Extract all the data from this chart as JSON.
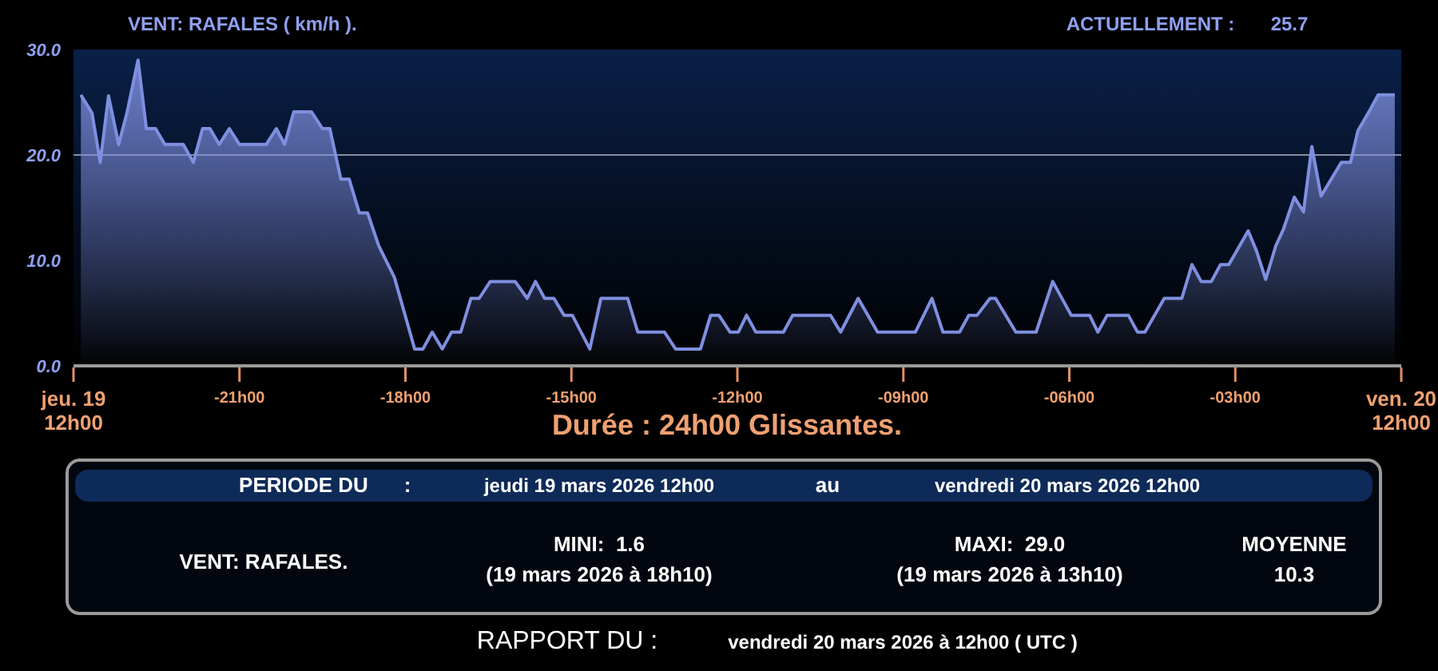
{
  "chart_data": {
    "type": "area",
    "title": "VENT: RAFALES ( km/h ).",
    "subtitle": "Durée : 24h00 Glissantes.",
    "annotations": [
      "ACTUELLEMENT :",
      "25.7",
      "PERIODE DU",
      ":",
      "jeudi 19 mars 2026 12h00",
      "au",
      "vendredi 20 mars 2026 12h00",
      "VENT: RAFALES.",
      "MINI:  1.6",
      "(19 mars 2026 à 18h10)",
      "MAXI:  29.0",
      "(19 mars 2026 à 13h10)",
      "MOYENNE",
      "10.3",
      "RAPPORT DU :",
      "vendredi 20 mars 2026 à 12h00 ( UTC )"
    ],
    "xlim": [
      "2026-03-19T12:00",
      "2026-03-20T12:00"
    ],
    "xticks": [
      {
        "value": "2026-03-19T12:00",
        "label": "jeu. 19\n12h00"
      },
      {
        "value": "2026-03-19T15:00",
        "label": "-21h00"
      },
      {
        "value": "2026-03-19T18:00",
        "label": "-18h00"
      },
      {
        "value": "2026-03-19T21:00",
        "label": "-15h00"
      },
      {
        "value": "2026-03-20T00:00",
        "label": "-12h00"
      },
      {
        "value": "2026-03-20T03:00",
        "label": "-09h00"
      },
      {
        "value": "2026-03-20T06:00",
        "label": "-06h00"
      },
      {
        "value": "2026-03-20T09:00",
        "label": "-03h00"
      },
      {
        "value": "2026-03-20T12:00",
        "label": "ven. 20\n12h00"
      }
    ],
    "ylim": [
      0,
      30
    ],
    "yticks": [
      {
        "value": 0,
        "label": "0.0"
      },
      {
        "value": 10,
        "label": "10.0"
      },
      {
        "value": 20,
        "label": "20.0"
      },
      {
        "value": 30,
        "label": "30.0"
      }
    ],
    "grid": false,
    "ref_lines": [
      {
        "axis": "y",
        "value": 20,
        "color": "#8890a0"
      }
    ],
    "series": [
      {
        "color": "#7f8fe0",
        "x": [
          "2026-03-19T12:08",
          "2026-03-19T12:20",
          "2026-03-19T12:29",
          "2026-03-19T12:38",
          "2026-03-19T12:49",
          "2026-03-19T12:58",
          "2026-03-19T13:10",
          "2026-03-19T13:19",
          "2026-03-19T13:29",
          "2026-03-19T13:39",
          "2026-03-19T13:59",
          "2026-03-19T14:10",
          "2026-03-19T14:20",
          "2026-03-19T14:28",
          "2026-03-19T14:38",
          "2026-03-19T14:49",
          "2026-03-19T15:00",
          "2026-03-19T15:29",
          "2026-03-19T15:40",
          "2026-03-19T15:49",
          "2026-03-19T15:59",
          "2026-03-19T16:18",
          "2026-03-19T16:30",
          "2026-03-19T16:38",
          "2026-03-19T16:50",
          "2026-03-19T16:59",
          "2026-03-19T17:10",
          "2026-03-19T17:19",
          "2026-03-19T17:31",
          "2026-03-19T17:48",
          "2026-03-19T18:10",
          "2026-03-19T18:19",
          "2026-03-19T18:29",
          "2026-03-19T18:40",
          "2026-03-19T18:50",
          "2026-03-19T19:00",
          "2026-03-19T19:11",
          "2026-03-19T19:20",
          "2026-03-19T19:32",
          "2026-03-19T19:59",
          "2026-03-19T20:12",
          "2026-03-19T20:21",
          "2026-03-19T20:31",
          "2026-03-19T20:41",
          "2026-03-19T20:52",
          "2026-03-19T21:01",
          "2026-03-19T21:20",
          "2026-03-19T21:32",
          "2026-03-19T22:01",
          "2026-03-19T22:12",
          "2026-03-19T22:41",
          "2026-03-19T22:53",
          "2026-03-19T23:20",
          "2026-03-19T23:31",
          "2026-03-19T23:40",
          "2026-03-19T23:52",
          "2026-03-20T00:01",
          "2026-03-20T00:10",
          "2026-03-20T00:20",
          "2026-03-20T00:50",
          "2026-03-20T01:00",
          "2026-03-20T01:41",
          "2026-03-20T01:52",
          "2026-03-20T02:11",
          "2026-03-20T02:32",
          "2026-03-20T03:13",
          "2026-03-20T03:31",
          "2026-03-20T03:43",
          "2026-03-20T04:01",
          "2026-03-20T04:11",
          "2026-03-20T04:20",
          "2026-03-20T04:34",
          "2026-03-20T04:40",
          "2026-03-20T05:02",
          "2026-03-20T05:24",
          "2026-03-20T05:42",
          "2026-03-20T06:02",
          "2026-03-20T06:22",
          "2026-03-20T06:31",
          "2026-03-20T06:41",
          "2026-03-20T07:04",
          "2026-03-20T07:14",
          "2026-03-20T07:22",
          "2026-03-20T07:43",
          "2026-03-20T08:02",
          "2026-03-20T08:13",
          "2026-03-20T08:23",
          "2026-03-20T08:34",
          "2026-03-20T08:44",
          "2026-03-20T08:53",
          "2026-03-20T09:14",
          "2026-03-20T09:23",
          "2026-03-20T09:33",
          "2026-03-20T09:44",
          "2026-03-20T09:52",
          "2026-03-20T10:04",
          "2026-03-20T10:14",
          "2026-03-20T10:23",
          "2026-03-20T10:33",
          "2026-03-20T10:55",
          "2026-03-20T11:05",
          "2026-03-20T11:13",
          "2026-03-20T11:25",
          "2026-03-20T11:35",
          "2026-03-20T11:53"
        ],
        "values": [
          25.7,
          24.0,
          19.3,
          25.6,
          21.0,
          24.0,
          29.0,
          22.5,
          22.5,
          21.0,
          21.0,
          19.3,
          22.5,
          22.5,
          21.0,
          22.5,
          21.0,
          21.0,
          22.5,
          21.0,
          24.1,
          24.1,
          22.5,
          22.5,
          17.7,
          17.7,
          14.5,
          14.5,
          11.4,
          8.4,
          1.6,
          1.6,
          3.2,
          1.6,
          3.2,
          3.2,
          6.4,
          6.4,
          8.0,
          8.0,
          6.4,
          8.0,
          6.4,
          6.4,
          4.8,
          4.8,
          1.6,
          6.4,
          6.4,
          3.2,
          3.2,
          1.6,
          1.6,
          4.8,
          4.8,
          3.2,
          3.2,
          4.8,
          3.2,
          3.2,
          4.8,
          4.8,
          3.2,
          6.4,
          3.2,
          3.2,
          6.4,
          3.2,
          3.2,
          4.8,
          4.8,
          6.4,
          6.4,
          3.2,
          3.2,
          8.0,
          4.8,
          4.8,
          3.2,
          4.8,
          4.8,
          3.2,
          3.2,
          6.4,
          6.4,
          9.6,
          8.0,
          8.0,
          9.6,
          9.6,
          12.8,
          10.9,
          8.2,
          11.4,
          12.9,
          16.0,
          14.6,
          20.8,
          16.1,
          19.3,
          19.3,
          22.3,
          24.1,
          25.7,
          25.7
        ]
      }
    ]
  }
}
